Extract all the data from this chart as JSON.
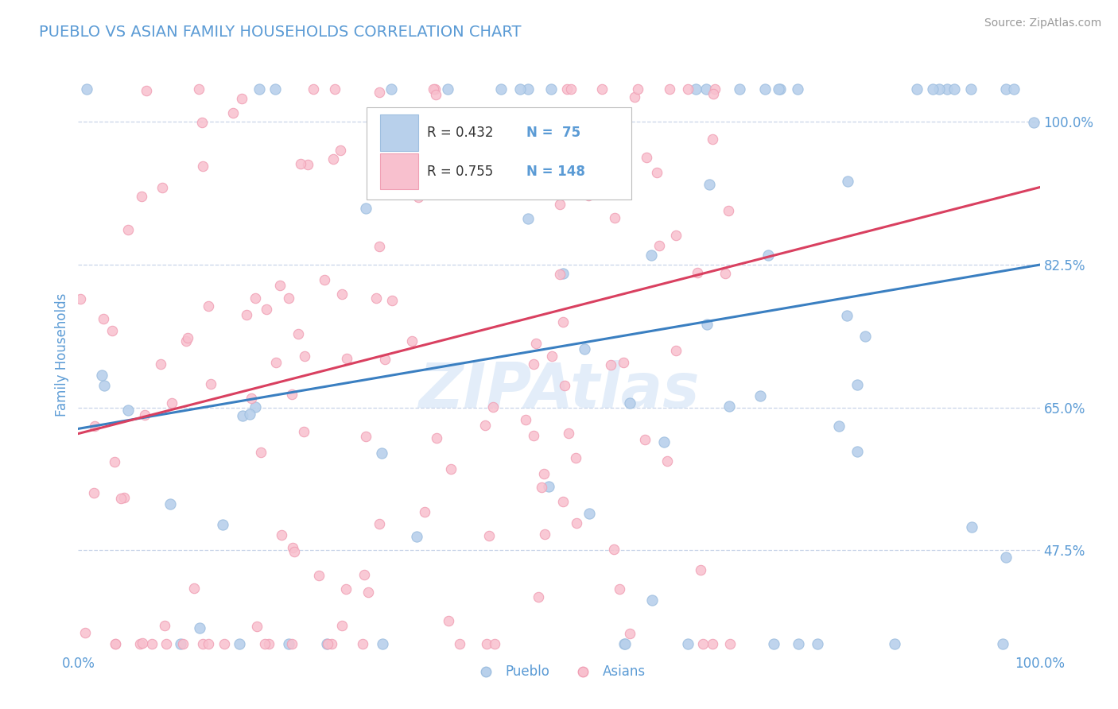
{
  "title": "PUEBLO VS ASIAN FAMILY HOUSEHOLDS CORRELATION CHART",
  "source": "Source: ZipAtlas.com",
  "ylabel": "Family Households",
  "xlim": [
    0.0,
    1.0
  ],
  "ylim": [
    0.35,
    1.08
  ],
  "yticks": [
    0.475,
    0.65,
    0.825,
    1.0
  ],
  "ytick_labels": [
    "47.5%",
    "65.0%",
    "82.5%",
    "100.0%"
  ],
  "xticks": [
    0.0,
    0.1,
    0.2,
    0.3,
    0.4,
    0.5,
    0.6,
    0.7,
    0.8,
    0.9,
    1.0
  ],
  "blue_color": "#9fbfe0",
  "blue_fill": "#b8d0eb",
  "pink_color": "#f0a0b5",
  "pink_fill": "#f8c0ce",
  "line_blue": "#3a7fc1",
  "line_pink": "#d94060",
  "title_color": "#5b9bd5",
  "axis_label_color": "#5b9bd5",
  "tick_color": "#5b9bd5",
  "watermark": "ZIPAtlas",
  "watermark_color": "#ccdff5",
  "legend_R_blue": "R = 0.432",
  "legend_N_blue": "N =  75",
  "legend_R_pink": "R = 0.755",
  "legend_N_pink": "N = 148",
  "legend_label_blue": "Pueblo",
  "legend_label_pink": "Asians",
  "bg_color": "#ffffff",
  "grid_color": "#c8d4e8",
  "grid_style": "--",
  "blue_line_start_y": 0.624,
  "blue_line_end_y": 0.825,
  "pink_line_start_y": 0.618,
  "pink_line_end_y": 0.92
}
